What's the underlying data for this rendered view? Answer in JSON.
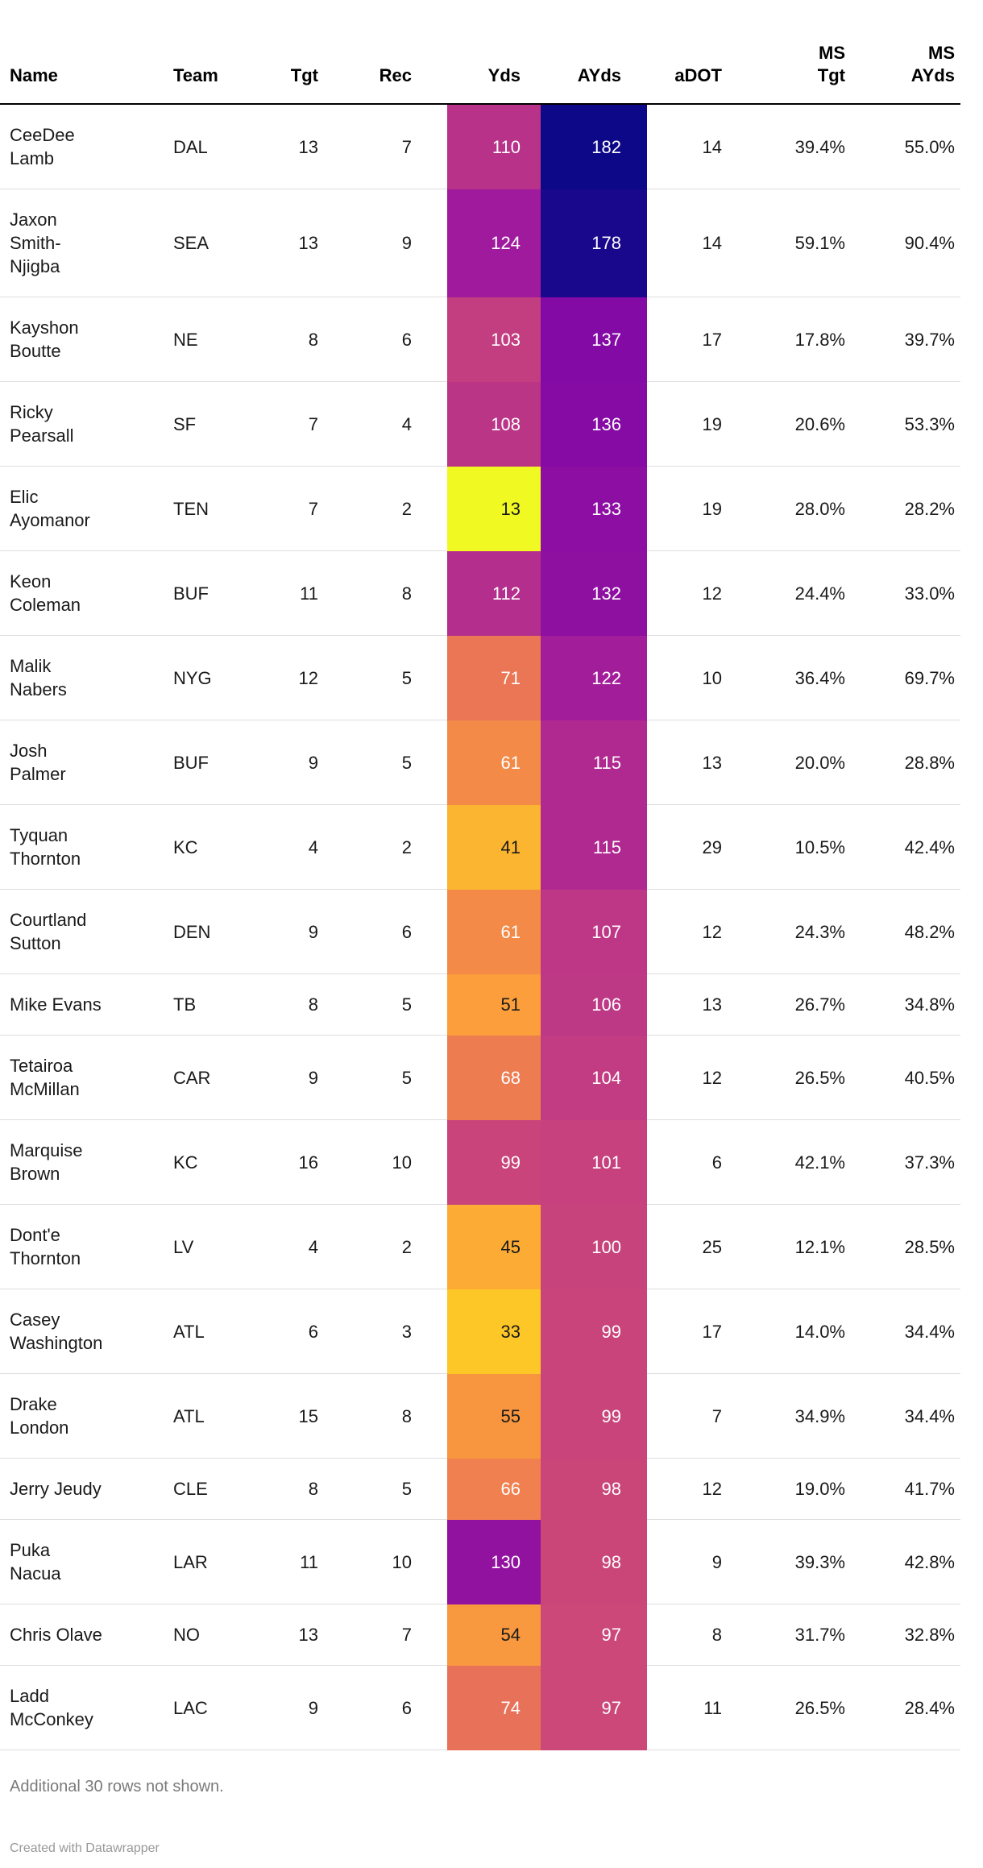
{
  "chart_data": {
    "type": "table",
    "columns": [
      {
        "key": "name",
        "label": "Name"
      },
      {
        "key": "team",
        "label": "Team"
      },
      {
        "key": "tgt",
        "label": "Tgt"
      },
      {
        "key": "rec",
        "label": "Rec"
      },
      {
        "key": "yds",
        "label": "Yds"
      },
      {
        "key": "ayds",
        "label": "AYds"
      },
      {
        "key": "adot",
        "label": "aDOT"
      },
      {
        "key": "ms_tgt",
        "label": "MS\nTgt"
      },
      {
        "key": "ms_ayds",
        "label": "MS\nAYds"
      }
    ],
    "heatmap_columns": [
      "yds",
      "ayds"
    ],
    "color_scale": {
      "palette": "plasma-reversed",
      "domain": [
        13,
        182
      ]
    },
    "rows": [
      {
        "name": "CeeDee Lamb",
        "team": "DAL",
        "tgt": 13,
        "rec": 7,
        "yds": 110,
        "yds_bg": "#b8328a",
        "yds_fg": "#ffffff",
        "ayds": 182,
        "ayds_bg": "#0d0887",
        "ayds_fg": "#ffffff",
        "adot": 14,
        "ms_tgt": "39.4%",
        "ms_ayds": "55.0%"
      },
      {
        "name": "Jaxon Smith-Njigba",
        "team": "SEA",
        "tgt": 13,
        "rec": 9,
        "yds": 124,
        "yds_bg": "#9f1a9c",
        "yds_fg": "#ffffff",
        "ayds": 178,
        "ayds_bg": "#19078c",
        "ayds_fg": "#ffffff",
        "adot": 14,
        "ms_tgt": "59.1%",
        "ms_ayds": "90.4%"
      },
      {
        "name": "Kayshon Boutte",
        "team": "NE",
        "tgt": 8,
        "rec": 6,
        "yds": 103,
        "yds_bg": "#c33e80",
        "yds_fg": "#ffffff",
        "ayds": 137,
        "ayds_bg": "#830aa4",
        "ayds_fg": "#ffffff",
        "adot": 17,
        "ms_tgt": "17.8%",
        "ms_ayds": "39.7%"
      },
      {
        "name": "Ricky Pearsall",
        "team": "SF",
        "tgt": 7,
        "rec": 4,
        "yds": 108,
        "yds_bg": "#bb3587",
        "yds_fg": "#ffffff",
        "ayds": 136,
        "ayds_bg": "#850ba4",
        "ayds_fg": "#ffffff",
        "adot": 19,
        "ms_tgt": "20.6%",
        "ms_ayds": "53.3%"
      },
      {
        "name": "Elic Ayomanor",
        "team": "TEN",
        "tgt": 7,
        "rec": 2,
        "yds": 13,
        "yds_bg": "#f0f921",
        "yds_fg": "#1a1a1a",
        "ayds": 133,
        "ayds_bg": "#8c0ea2",
        "ayds_fg": "#ffffff",
        "adot": 19,
        "ms_tgt": "28.0%",
        "ms_ayds": "28.2%"
      },
      {
        "name": "Keon Coleman",
        "team": "BUF",
        "tgt": 11,
        "rec": 8,
        "yds": 112,
        "yds_bg": "#b42e8d",
        "yds_fg": "#ffffff",
        "ayds": 132,
        "ayds_bg": "#8e10a1",
        "ayds_fg": "#ffffff",
        "adot": 12,
        "ms_tgt": "24.4%",
        "ms_ayds": "33.0%"
      },
      {
        "name": "Malik Nabers",
        "team": "NYG",
        "tgt": 12,
        "rec": 5,
        "yds": 71,
        "yds_bg": "#eb7655",
        "yds_fg": "#ffffff",
        "ayds": 122,
        "ayds_bg": "#a21d99",
        "ayds_fg": "#ffffff",
        "adot": 10,
        "ms_tgt": "36.4%",
        "ms_ayds": "69.7%"
      },
      {
        "name": "Josh Palmer",
        "team": "BUF",
        "tgt": 9,
        "rec": 5,
        "yds": 61,
        "yds_bg": "#f38a48",
        "yds_fg": "#ffffff",
        "ayds": 115,
        "ayds_bg": "#af2990",
        "ayds_fg": "#ffffff",
        "adot": 13,
        "ms_tgt": "20.0%",
        "ms_ayds": "28.8%"
      },
      {
        "name": "Tyquan Thornton",
        "team": "KC",
        "tgt": 4,
        "rec": 2,
        "yds": 41,
        "yds_bg": "#fcb530",
        "yds_fg": "#1a1a1a",
        "ayds": 115,
        "ayds_bg": "#af2990",
        "ayds_fg": "#ffffff",
        "adot": 29,
        "ms_tgt": "10.5%",
        "ms_ayds": "42.4%"
      },
      {
        "name": "Courtland Sutton",
        "team": "DEN",
        "tgt": 9,
        "rec": 6,
        "yds": 61,
        "yds_bg": "#f38a48",
        "yds_fg": "#ffffff",
        "ayds": 107,
        "ayds_bg": "#bd3786",
        "ayds_fg": "#ffffff",
        "adot": 12,
        "ms_tgt": "24.3%",
        "ms_ayds": "48.2%"
      },
      {
        "name": "Mike Evans",
        "team": "TB",
        "tgt": 8,
        "rec": 5,
        "yds": 51,
        "yds_bg": "#fb9e3b",
        "yds_fg": "#1a1a1a",
        "ayds": 106,
        "ayds_bg": "#be3985",
        "ayds_fg": "#ffffff",
        "adot": 13,
        "ms_tgt": "26.7%",
        "ms_ayds": "34.8%"
      },
      {
        "name": "Tetairoa McMillan",
        "team": "CAR",
        "tgt": 9,
        "rec": 5,
        "yds": 68,
        "yds_bg": "#ee7c51",
        "yds_fg": "#ffffff",
        "ayds": 104,
        "ayds_bg": "#c13c82",
        "ayds_fg": "#ffffff",
        "adot": 12,
        "ms_tgt": "26.5%",
        "ms_ayds": "40.5%"
      },
      {
        "name": "Marquise Brown",
        "team": "KC",
        "tgt": 16,
        "rec": 10,
        "yds": 99,
        "yds_bg": "#c8447b",
        "yds_fg": "#ffffff",
        "ayds": 101,
        "ayds_bg": "#c6417e",
        "ayds_fg": "#ffffff",
        "adot": 6,
        "ms_tgt": "42.1%",
        "ms_ayds": "37.3%"
      },
      {
        "name": "Dont'e Thornton",
        "team": "LV",
        "tgt": 4,
        "rec": 2,
        "yds": 45,
        "yds_bg": "#fcac34",
        "yds_fg": "#1a1a1a",
        "ayds": 100,
        "ayds_bg": "#c7437c",
        "ayds_fg": "#ffffff",
        "adot": 25,
        "ms_tgt": "12.1%",
        "ms_ayds": "28.5%"
      },
      {
        "name": "Casey Washington",
        "team": "ATL",
        "tgt": 6,
        "rec": 3,
        "yds": 33,
        "yds_bg": "#fdc727",
        "yds_fg": "#1a1a1a",
        "ayds": 99,
        "ayds_bg": "#c8447b",
        "ayds_fg": "#ffffff",
        "adot": 17,
        "ms_tgt": "14.0%",
        "ms_ayds": "34.4%"
      },
      {
        "name": "Drake London",
        "team": "ATL",
        "tgt": 15,
        "rec": 8,
        "yds": 55,
        "yds_bg": "#f89640",
        "yds_fg": "#1a1a1a",
        "ayds": 99,
        "ayds_bg": "#c8447b",
        "ayds_fg": "#ffffff",
        "adot": 7,
        "ms_tgt": "34.9%",
        "ms_ayds": "34.4%"
      },
      {
        "name": "Jerry Jeudy",
        "team": "CLE",
        "tgt": 8,
        "rec": 5,
        "yds": 66,
        "yds_bg": "#f0804f",
        "yds_fg": "#ffffff",
        "ayds": 98,
        "ayds_bg": "#ca4679",
        "ayds_fg": "#ffffff",
        "adot": 12,
        "ms_tgt": "19.0%",
        "ms_ayds": "41.7%"
      },
      {
        "name": "Puka Nacua",
        "team": "LAR",
        "tgt": 11,
        "rec": 10,
        "yds": 130,
        "yds_bg": "#9212a0",
        "yds_fg": "#ffffff",
        "ayds": 98,
        "ayds_bg": "#ca4679",
        "ayds_fg": "#ffffff",
        "adot": 9,
        "ms_tgt": "39.3%",
        "ms_ayds": "42.8%"
      },
      {
        "name": "Chris Olave",
        "team": "NO",
        "tgt": 13,
        "rec": 7,
        "yds": 54,
        "yds_bg": "#f8983f",
        "yds_fg": "#1a1a1a",
        "ayds": 97,
        "ayds_bg": "#cb4878",
        "ayds_fg": "#ffffff",
        "adot": 8,
        "ms_tgt": "31.7%",
        "ms_ayds": "32.8%"
      },
      {
        "name": "Ladd McConkey",
        "team": "LAC",
        "tgt": 9,
        "rec": 6,
        "yds": 74,
        "yds_bg": "#e87159",
        "yds_fg": "#ffffff",
        "ayds": 97,
        "ayds_bg": "#cb4878",
        "ayds_fg": "#ffffff",
        "adot": 11,
        "ms_tgt": "26.5%",
        "ms_ayds": "28.4%"
      }
    ]
  },
  "footer": {
    "note": "Additional 30 rows not shown.",
    "credit": "Created with Datawrapper"
  }
}
